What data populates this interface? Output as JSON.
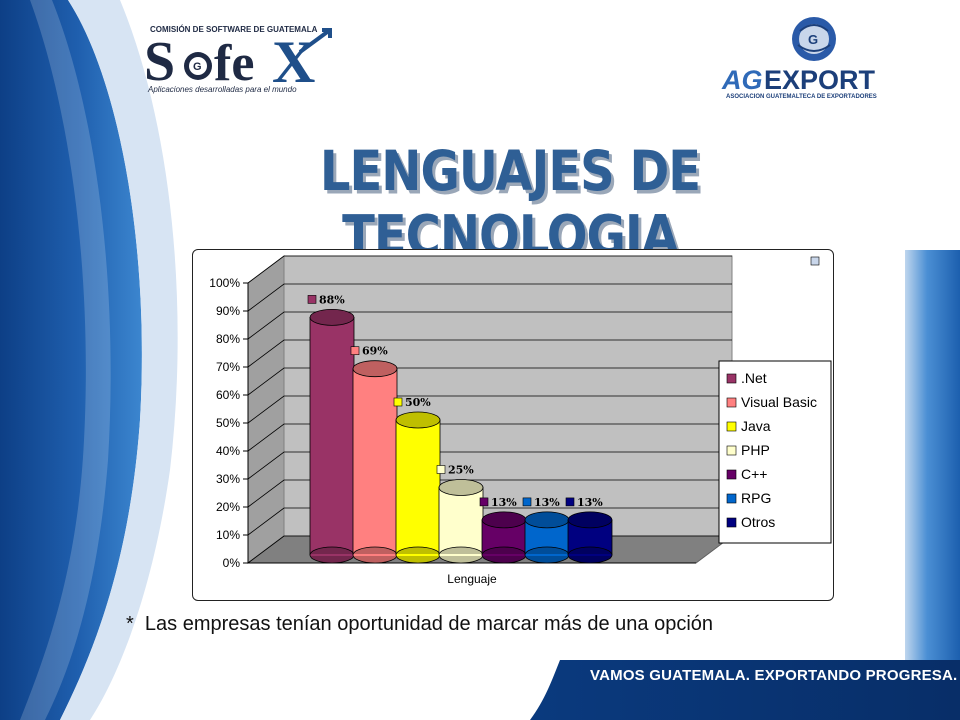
{
  "slide": {
    "title": "LENGUAJES DE TECNOLOGIA",
    "footnote": "*  Las empresas tenían oportunidad de marcar más de una opción",
    "slogan": "VAMOS GUATEMALA. EXPORTANDO PROGRESA."
  },
  "logos": {
    "sofex": {
      "top": "COMISIÓN DE SOFTWARE DE GUATEMALA",
      "name_left": "S",
      "name_mid": "fe",
      "name_right": "X",
      "tagline": "Aplicaciones desarrolladas para el mundo",
      "color": "#1f2a44"
    },
    "agexport": {
      "name_ag": "AG",
      "name_rest": "EXPORT",
      "tagline": "ASOCIACION GUATEMALTECA DE EXPORTADORES",
      "color": "#1c3f7a"
    }
  },
  "colors": {
    "brand_blue": "#1f5fae",
    "dark_blue": "#0d3f86",
    "plot_wall": "#c0c0c0",
    "plot_floor": "#808080"
  },
  "chart_data": {
    "type": "bar",
    "title": "",
    "xlabel": "Lenguaje",
    "ylabel": "",
    "ylim": [
      0,
      100
    ],
    "yticks": [
      "0%",
      "10%",
      "20%",
      "30%",
      "40%",
      "50%",
      "60%",
      "70%",
      "80%",
      "90%",
      "100%"
    ],
    "grid": true,
    "legend_position": "right",
    "series": [
      {
        "name": ".Net",
        "value": 88,
        "label": "88%",
        "color": "#993366"
      },
      {
        "name": "Visual Basic",
        "value": 69,
        "label": "69%",
        "color": "#ff8080"
      },
      {
        "name": "Java",
        "value": 50,
        "label": "50%",
        "color": "#ffff00"
      },
      {
        "name": "PHP",
        "value": 25,
        "label": "25%",
        "color": "#ffffcc"
      },
      {
        "name": "C++",
        "value": 13,
        "label": "13%",
        "color": "#660066"
      },
      {
        "name": "RPG",
        "value": 13,
        "label": "13%",
        "color": "#0066cc"
      },
      {
        "name": "Otros",
        "value": 13,
        "label": "13%",
        "color": "#000080"
      }
    ]
  }
}
